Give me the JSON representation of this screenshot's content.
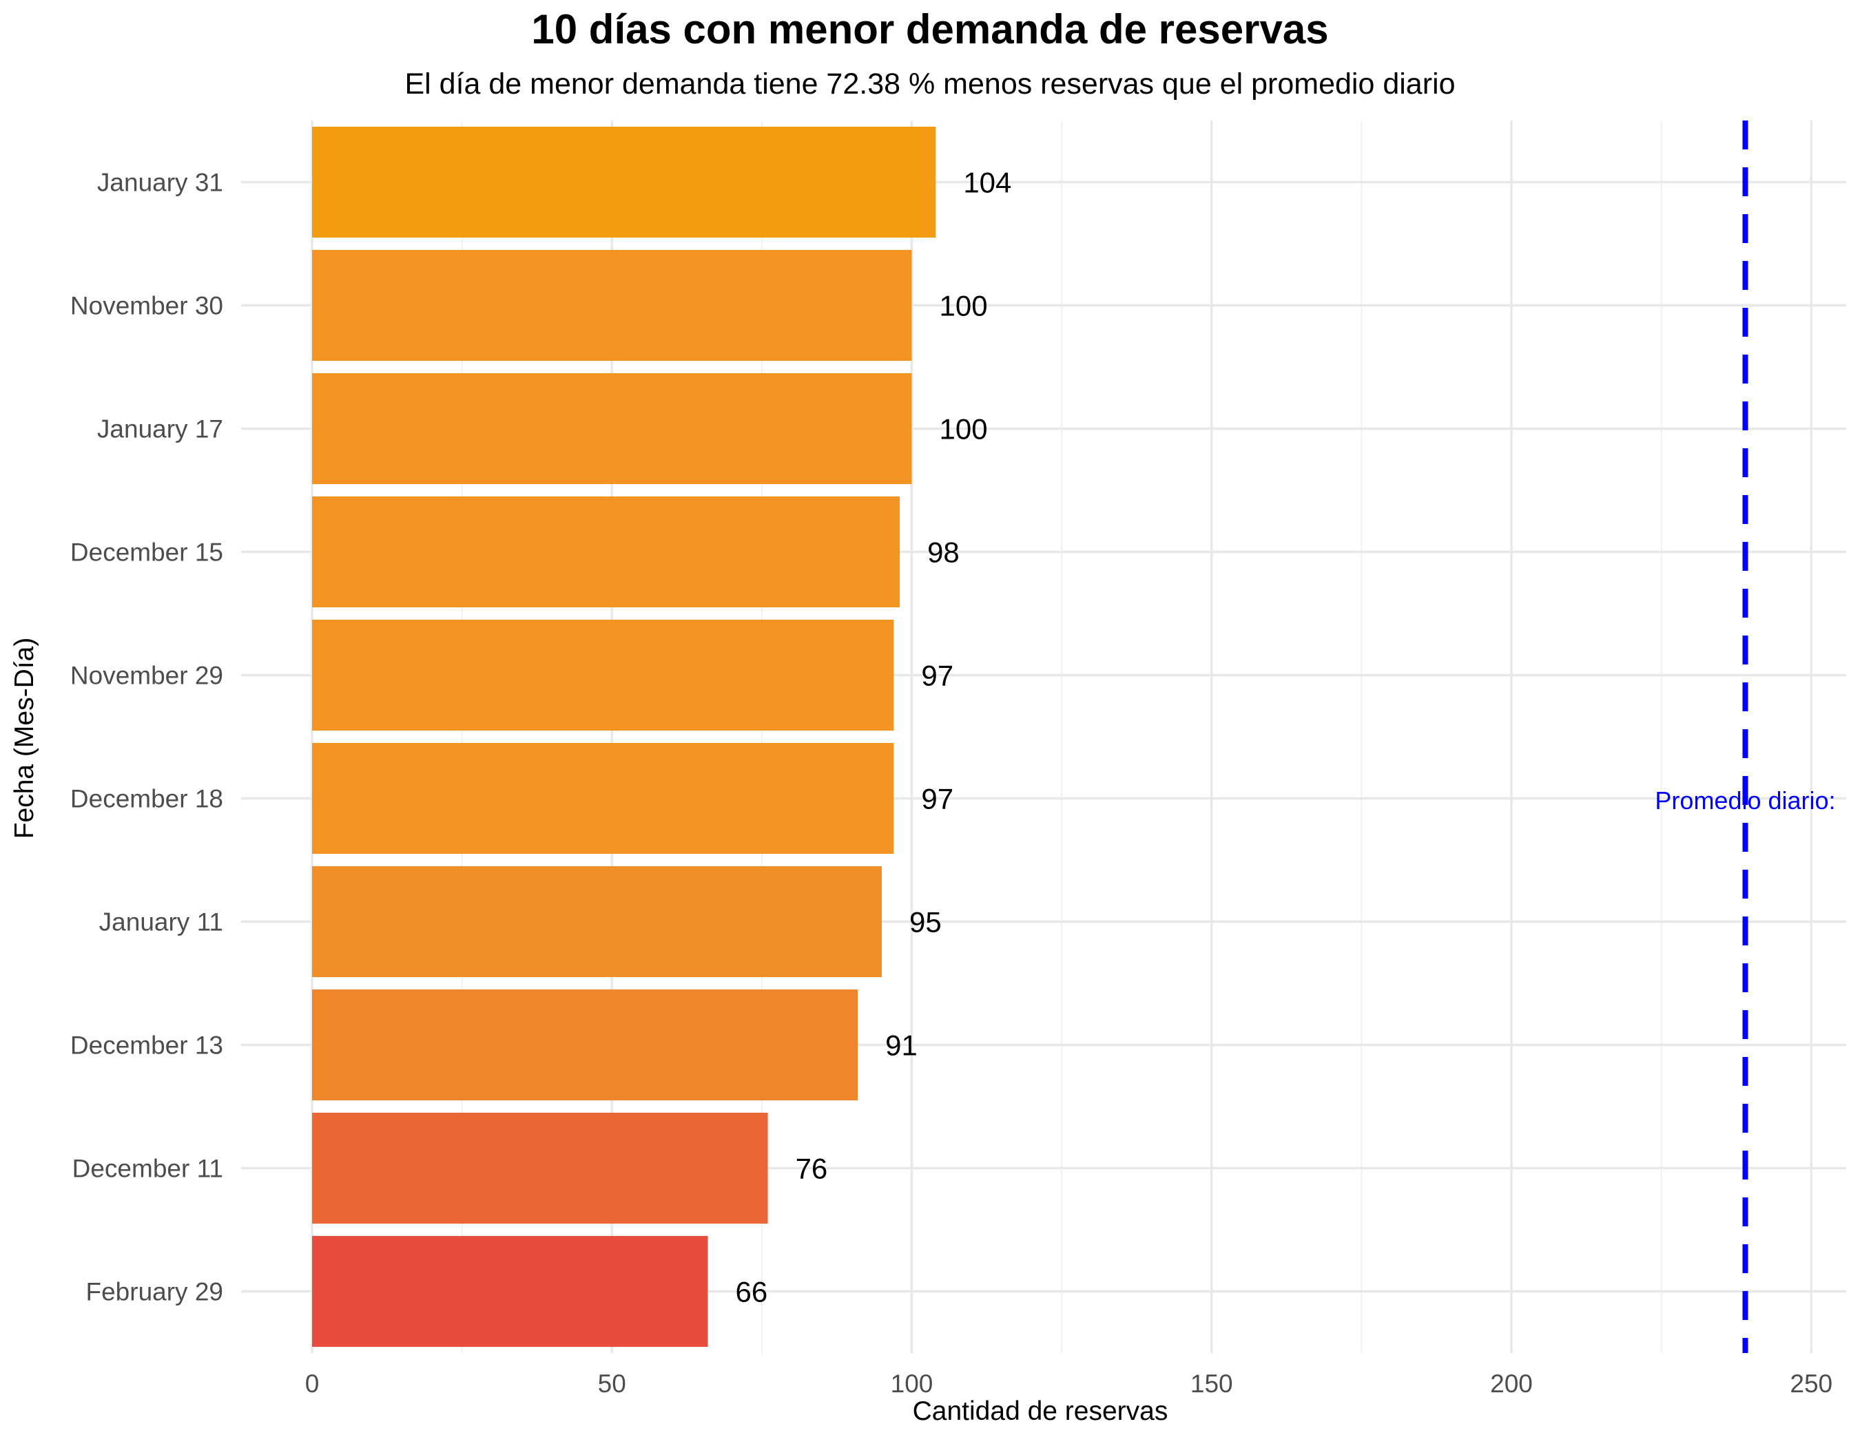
{
  "chart_data": {
    "type": "bar",
    "orientation": "horizontal",
    "title": "10 días con menor demanda de reservas",
    "subtitle": "El día de menor demanda tiene 72.38 % menos reservas que el promedio diario",
    "xlabel": "Cantidad de reservas",
    "ylabel": "Fecha (Mes-Día)",
    "xlim": [
      0,
      258
    ],
    "xticks": [
      0,
      50,
      100,
      150,
      200,
      250
    ],
    "grid": true,
    "categories": [
      "January 31",
      "November 30",
      "January 17",
      "December 15",
      "November 29",
      "December 18",
      "January 11",
      "December 13",
      "December 11",
      "February 29"
    ],
    "values": [
      104,
      100,
      100,
      98,
      97,
      97,
      95,
      91,
      76,
      66
    ],
    "bar_colors": [
      "#f39c12",
      "#f29322",
      "#f29322",
      "#f29322",
      "#f29322",
      "#f29322",
      "#f08e27",
      "#ef862c",
      "#eb6637",
      "#e74c3c"
    ],
    "reference_line": {
      "value": 239,
      "label": "Promedio diario:",
      "color": "#0000ff",
      "style": "dashed"
    }
  }
}
